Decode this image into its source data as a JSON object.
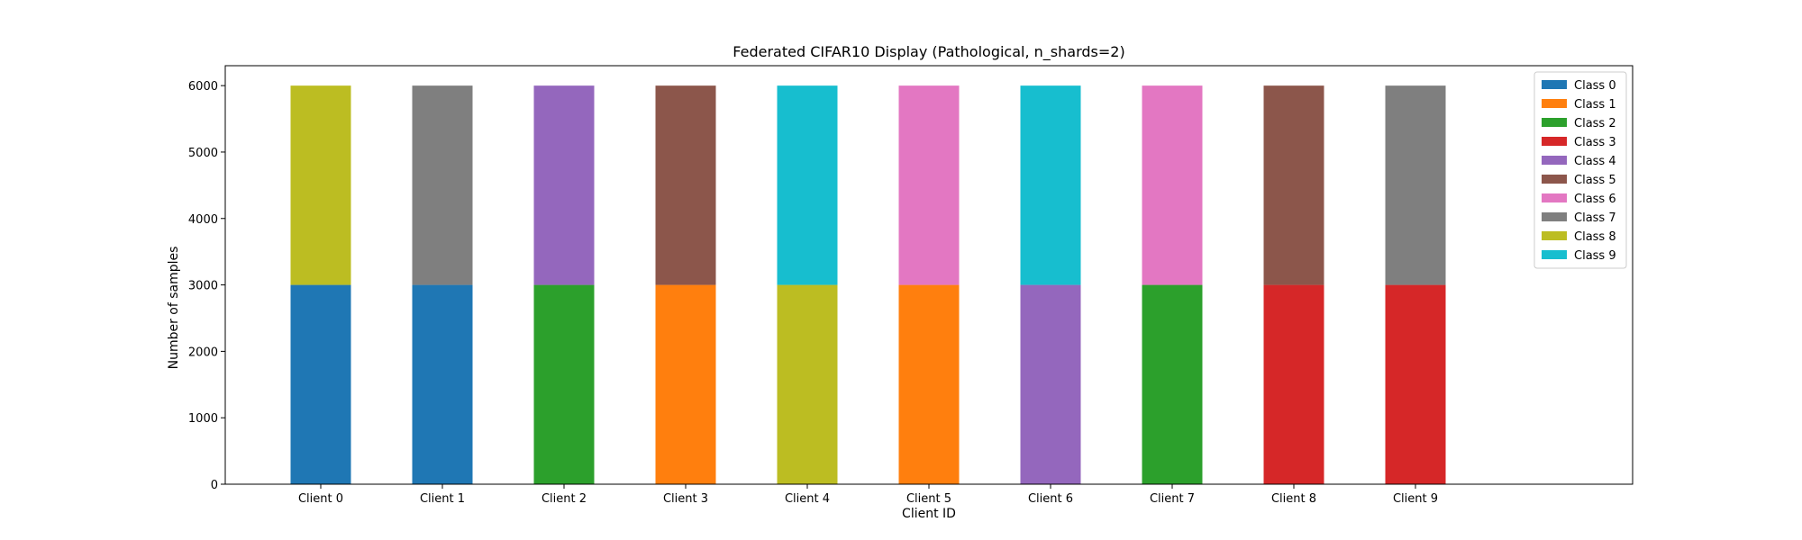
{
  "chart_data": {
    "type": "bar",
    "stacked": true,
    "title": "Federated CIFAR10 Display (Pathological, n_shards=2)",
    "xlabel": "Client ID",
    "ylabel": "Number of samples",
    "categories": [
      "Client 0",
      "Client 1",
      "Client 2",
      "Client 3",
      "Client 4",
      "Client 5",
      "Client 6",
      "Client 7",
      "Client 8",
      "Client 9"
    ],
    "ylim": [
      0,
      6300
    ],
    "yticks": [
      0,
      1000,
      2000,
      3000,
      4000,
      5000,
      6000
    ],
    "grid": false,
    "legend_position": "top-right",
    "series": [
      {
        "name": "Class 0",
        "color": "#1f77b4",
        "values": [
          3000,
          3000,
          0,
          0,
          0,
          0,
          0,
          0,
          0,
          0
        ]
      },
      {
        "name": "Class 1",
        "color": "#ff7f0e",
        "values": [
          0,
          0,
          0,
          3000,
          0,
          3000,
          0,
          0,
          0,
          0
        ]
      },
      {
        "name": "Class 2",
        "color": "#2ca02c",
        "values": [
          0,
          0,
          3000,
          0,
          0,
          0,
          0,
          3000,
          0,
          0
        ]
      },
      {
        "name": "Class 3",
        "color": "#d62728",
        "values": [
          0,
          0,
          0,
          0,
          0,
          0,
          0,
          0,
          3000,
          3000
        ]
      },
      {
        "name": "Class 4",
        "color": "#9467bd",
        "values": [
          0,
          0,
          3000,
          0,
          0,
          0,
          3000,
          0,
          0,
          0
        ]
      },
      {
        "name": "Class 5",
        "color": "#8c564b",
        "values": [
          0,
          0,
          0,
          3000,
          0,
          0,
          0,
          0,
          3000,
          0
        ]
      },
      {
        "name": "Class 6",
        "color": "#e377c2",
        "values": [
          0,
          0,
          0,
          0,
          0,
          3000,
          0,
          3000,
          0,
          0
        ]
      },
      {
        "name": "Class 7",
        "color": "#7f7f7f",
        "values": [
          0,
          3000,
          0,
          0,
          0,
          0,
          0,
          0,
          0,
          3000
        ]
      },
      {
        "name": "Class 8",
        "color": "#bcbd22",
        "values": [
          3000,
          0,
          0,
          0,
          3000,
          0,
          0,
          0,
          0,
          0
        ]
      },
      {
        "name": "Class 9",
        "color": "#17becf",
        "values": [
          0,
          0,
          0,
          0,
          3000,
          0,
          3000,
          0,
          0,
          0
        ]
      }
    ]
  }
}
